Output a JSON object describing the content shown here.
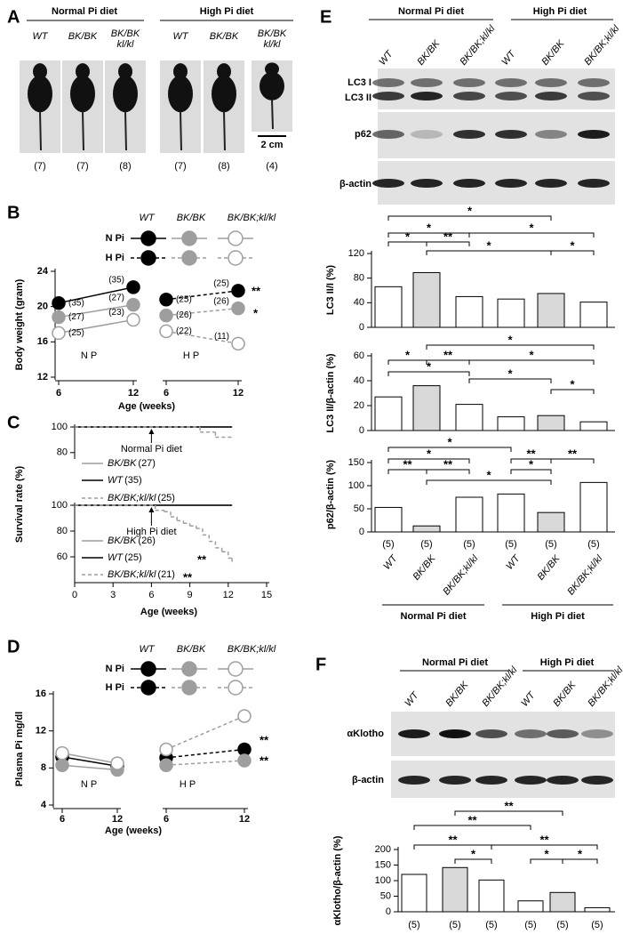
{
  "panel_labels": [
    "A",
    "B",
    "C",
    "D",
    "E",
    "F"
  ],
  "panel_a": {
    "groups": [
      "Normal Pi diet",
      "High Pi diet"
    ],
    "genotypes": [
      [
        "WT"
      ],
      [
        "BK/BK"
      ],
      [
        "BK/BK",
        "kl/kl"
      ]
    ],
    "counts": [
      "(7)",
      "(7)",
      "(8)",
      "(7)",
      "(8)",
      "(4)"
    ],
    "scale_bar": "2 cm"
  },
  "chart_data": [
    {
      "type": "line",
      "ylabel": "Body weight (gram)",
      "xlabel": "Age (weeks)",
      "ylim": [
        12,
        24
      ],
      "yticks": [
        12,
        16,
        20,
        24
      ],
      "x": [
        6,
        12
      ],
      "legend": {
        "columns": [
          "WT",
          "BK/BK",
          "BK/BK;kl/kl"
        ],
        "rows": [
          "N Pi",
          "H Pi"
        ]
      },
      "groups": [
        {
          "label": "N P",
          "dashed": false,
          "series": [
            {
              "color": "#000000",
              "fill": "#000000",
              "values": [
                20.4,
                22.2
              ],
              "labels": [
                "(35)",
                "(35)"
              ]
            },
            {
              "color": "#9e9e9e",
              "fill": "#9e9e9e",
              "values": [
                18.8,
                20.2
              ],
              "labels": [
                "(27)",
                "(27)"
              ]
            },
            {
              "color": "#9e9e9e",
              "fill": "#ffffff",
              "values": [
                17.0,
                18.5
              ],
              "labels": [
                "(25)",
                "(23)"
              ]
            }
          ]
        },
        {
          "label": "H P",
          "dashed": true,
          "series": [
            {
              "color": "#000000",
              "fill": "#000000",
              "values": [
                20.8,
                21.8
              ],
              "labels": [
                "(25)",
                "(25)"
              ]
            },
            {
              "color": "#9e9e9e",
              "fill": "#9e9e9e",
              "values": [
                19.0,
                19.8
              ],
              "labels": [
                "(26)",
                "(26)"
              ]
            },
            {
              "color": "#9e9e9e",
              "fill": "#ffffff",
              "values": [
                17.2,
                15.8
              ],
              "labels": [
                "(22)",
                "(11)"
              ]
            }
          ]
        }
      ],
      "annotations": [
        "**",
        "*"
      ]
    },
    {
      "type": "step",
      "ylabel": "Survival rate (%)",
      "xlabel": "Age (weeks)",
      "xlim": [
        0,
        15
      ],
      "xticks": [
        0,
        3,
        6,
        9,
        12,
        15
      ],
      "panels": [
        {
          "ylim": [
            75,
            100
          ],
          "yticks": [
            80,
            100
          ],
          "annotation": {
            "text": "Normal Pi diet",
            "x": 6
          },
          "series": [
            {
              "name": "BK/BK",
              "n": "(27)",
              "color": "#9e9e9e",
              "dashed": false,
              "x": [
                0,
                12.3
              ],
              "values": [
                100,
                100
              ]
            },
            {
              "name": "WT",
              "n": "(35)",
              "color": "#000000",
              "dashed": false,
              "x": [
                0,
                12.3
              ],
              "values": [
                100,
                100
              ]
            },
            {
              "name": "BK/BK;kl/kl",
              "n": "(25)",
              "color": "#9e9e9e",
              "dashed": true,
              "x": [
                0,
                9.8,
                11,
                12.3
              ],
              "values": [
                100,
                96,
                92,
                92
              ]
            }
          ]
        },
        {
          "ylim": [
            40,
            100
          ],
          "yticks": [
            60,
            80,
            100
          ],
          "annotation": {
            "text": "High Pi diet",
            "x": 6
          },
          "stars": [
            "**",
            "**"
          ],
          "series": [
            {
              "name": "BK/BK",
              "n": "(26)",
              "color": "#9e9e9e",
              "dashed": false,
              "x": [
                0,
                12.3
              ],
              "values": [
                100,
                100
              ]
            },
            {
              "name": "WT",
              "n": "(25)",
              "color": "#000000",
              "dashed": false,
              "x": [
                0,
                12.3
              ],
              "values": [
                100,
                100
              ]
            },
            {
              "name": "BK/BK;kl/kl",
              "n": "(21)",
              "color": "#9e9e9e",
              "dashed": true,
              "x": [
                0,
                6.3,
                7,
                7.5,
                8,
                8.5,
                9,
                9.5,
                10,
                10.5,
                11,
                11.5,
                12,
                12.3
              ],
              "values": [
                100,
                96,
                95,
                91,
                88,
                86,
                84,
                82,
                77,
                72,
                67,
                64,
                59,
                55
              ]
            }
          ]
        }
      ]
    },
    {
      "type": "line",
      "ylabel": "Plasma Pi mg/dl",
      "xlabel": "Age (weeks)",
      "ylim": [
        4,
        16
      ],
      "yticks": [
        4,
        8,
        12,
        16
      ],
      "x": [
        6,
        12
      ],
      "legend": {
        "columns": [
          "WT",
          "BK/BK",
          "BK/BK;kl/kl"
        ],
        "rows": [
          "N Pi",
          "H Pi"
        ]
      },
      "groups": [
        {
          "label": "N P",
          "dashed": false,
          "series": [
            {
              "color": "#000000",
              "fill": "#000000",
              "values": [
                9.2,
                8.2
              ]
            },
            {
              "color": "#9e9e9e",
              "fill": "#9e9e9e",
              "values": [
                8.3,
                7.8
              ]
            },
            {
              "color": "#9e9e9e",
              "fill": "#ffffff",
              "values": [
                9.6,
                8.5
              ]
            }
          ]
        },
        {
          "label": "H P",
          "dashed": true,
          "series": [
            {
              "color": "#000000",
              "fill": "#000000",
              "values": [
                9.1,
                10.0
              ]
            },
            {
              "color": "#9e9e9e",
              "fill": "#9e9e9e",
              "values": [
                8.3,
                8.8
              ]
            },
            {
              "color": "#9e9e9e",
              "fill": "#ffffff",
              "values": [
                10.0,
                13.6
              ]
            }
          ]
        }
      ],
      "annotations": [
        "**",
        "**"
      ]
    },
    {
      "type": "bar",
      "categories": [
        "WT",
        "BK/BK",
        "BK/BK;kl/kl",
        "WT",
        "BK/BK",
        "BK/BK;kl/kl"
      ],
      "groups": [
        "Normal Pi diet",
        "High Pi diet"
      ],
      "n_labels": [
        "(5)",
        "(5)",
        "(5)",
        "(5)",
        "(5)",
        "(5)"
      ],
      "colors": [
        "#ffffff",
        "#d9d9d9",
        "#ffffff",
        "#ffffff",
        "#d9d9d9",
        "#ffffff"
      ],
      "blots": [
        "LC3 I",
        "LC3 II",
        "p62",
        "β-actin"
      ],
      "subcharts": [
        {
          "ylabel": "LC3 II/I (%)",
          "ylim": [
            0,
            120
          ],
          "yticks": [
            0,
            40,
            80,
            120
          ],
          "values": [
            66,
            89,
            50,
            46,
            55,
            41
          ],
          "significance": [
            "*",
            "*",
            "*",
            "*",
            "**",
            "*",
            "*"
          ]
        },
        {
          "ylabel": "LC3 II/β-actin (%)",
          "ylim": [
            0,
            60
          ],
          "yticks": [
            0,
            20,
            40,
            60
          ],
          "values": [
            27,
            36,
            21,
            11,
            12,
            7
          ],
          "significance": [
            "*",
            "*",
            "**",
            "*",
            "*",
            "*",
            "*"
          ]
        },
        {
          "ylabel": "p62/β-actin (%)",
          "ylim": [
            0,
            150
          ],
          "yticks": [
            0,
            50,
            100,
            150
          ],
          "values": [
            53,
            13,
            75,
            82,
            42,
            107
          ],
          "significance": [
            "*",
            "*",
            "**",
            "**",
            "**",
            "**",
            "*",
            "*"
          ]
        }
      ]
    },
    {
      "type": "bar",
      "categories": [
        "WT",
        "BK/BK",
        "BK/BK;kl/kl",
        "WT",
        "BK/BK",
        "BK/BK;kl/kl"
      ],
      "groups": [
        "Normal Pi diet",
        "High Pi diet"
      ],
      "n_labels": [
        "(5)",
        "(5)",
        "(5)",
        "(5)",
        "(5)",
        "(5)"
      ],
      "colors": [
        "#ffffff",
        "#d9d9d9",
        "#ffffff",
        "#ffffff",
        "#d9d9d9",
        "#ffffff"
      ],
      "blots": [
        "αKlotho",
        "β-actin"
      ],
      "subcharts": [
        {
          "ylabel": "αKlotho/β-actin (%)",
          "ylim": [
            0,
            200
          ],
          "yticks": [
            0,
            50,
            100,
            150,
            200
          ],
          "values": [
            120,
            142,
            102,
            35,
            62,
            13
          ],
          "significance": [
            "**",
            "**",
            "**",
            "**",
            "*",
            "*",
            "*"
          ]
        }
      ]
    }
  ]
}
